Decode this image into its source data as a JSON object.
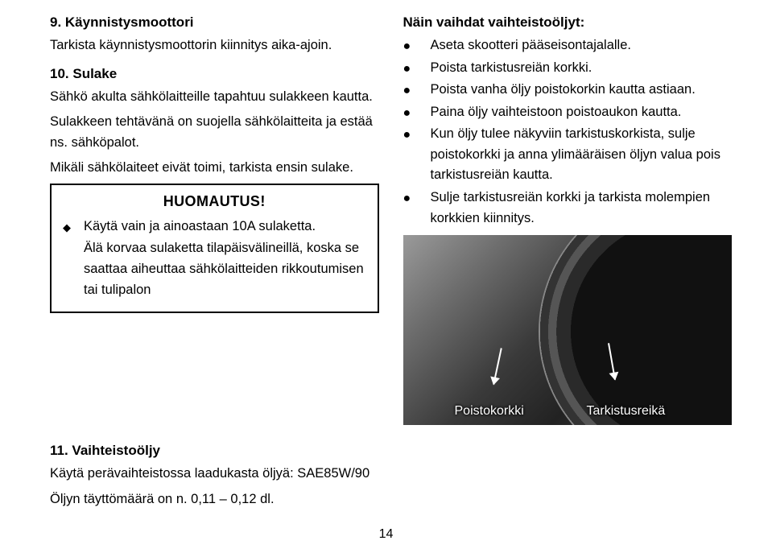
{
  "left": {
    "h9": "9. Käynnistysmoottori",
    "p9": "Tarkista käynnistysmoottorin kiinnitys aika-ajoin.",
    "h10": "10. Sulake",
    "p10a": "Sähkö akulta sähkölaitteille tapahtuu sulakkeen kautta.",
    "p10b": "Sulakkeen tehtävänä on suojella sähkölaitteita ja estää ns. sähköpalot.",
    "p10c": "Mikäli sähkölaiteet eivät toimi, tarkista ensin sulake.",
    "notice_title": "HUOMAUTUS!",
    "notice_bullet": "Käytä vain ja ainoastaan 10A sulaketta.",
    "notice_cont": "Älä korvaa sulaketta tilapäisvälineillä, koska se saattaa aiheuttaa sähkölaitteiden rikkoutumisen tai tulipalon",
    "h11": "11. Vaihteistoöljy",
    "p11a": "Käytä perävaihteistossa laadukasta öljyä: SAE85W/90",
    "p11b": "Öljyn täyttömäärä on n. 0,11 – 0,12 dl."
  },
  "right": {
    "heading": "Näin vaihdat vaihteistoöljyt:",
    "items": [
      "Aseta skootteri pääseisontajalalle.",
      "Poista tarkistusreiän korkki.",
      "Poista vanha öljy poistokorkin kautta astiaan.",
      "Paina öljy vaihteistoon poistoaukon kautta.",
      "Kun öljy tulee näkyviin tarkistuskorkista, sulje poistokorkki ja anna ylimääräisen öljyn valua pois tarkistusreiän kautta.",
      "Sulje tarkistusreiän korkki ja tarkista molempien korkkien kiinnitys."
    ],
    "caption_left": "Poistokorkki",
    "caption_right": "Tarkistusreikä"
  },
  "page_number": "14"
}
